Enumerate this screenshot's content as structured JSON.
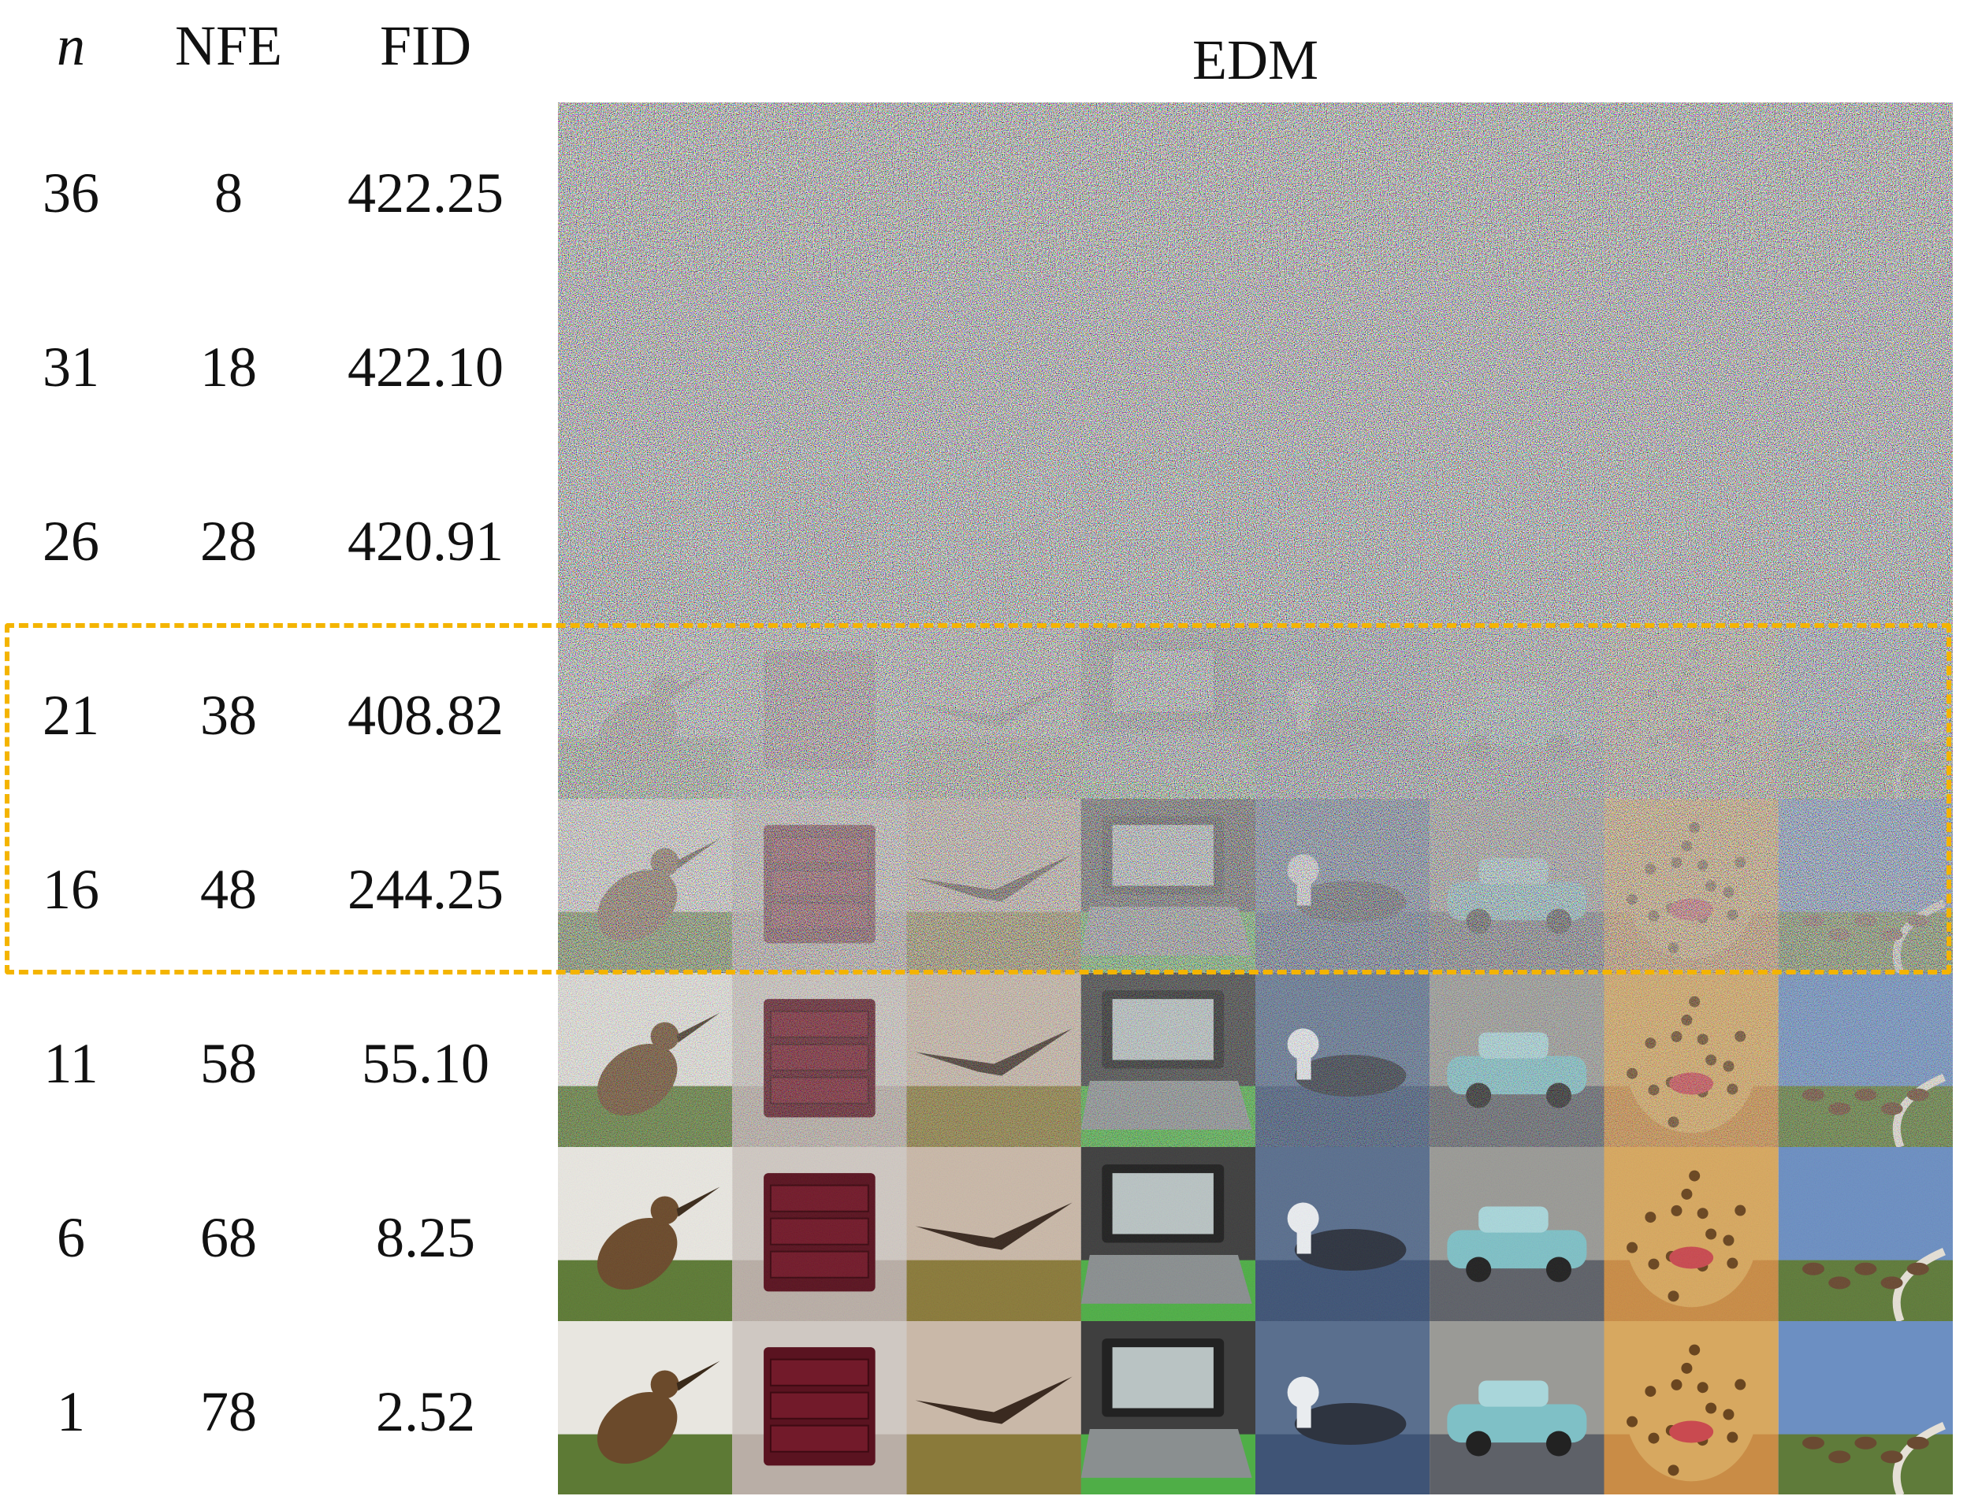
{
  "header": {
    "n": "n",
    "nfe": "NFE",
    "fid": "FID",
    "edm": "EDM"
  },
  "rows": [
    {
      "n": "36",
      "nfe": "8",
      "fid": "422.25",
      "noise": 1.0
    },
    {
      "n": "31",
      "nfe": "18",
      "fid": "422.10",
      "noise": 1.0
    },
    {
      "n": "26",
      "nfe": "28",
      "fid": "420.91",
      "noise": 0.99
    },
    {
      "n": "21",
      "nfe": "38",
      "fid": "408.82",
      "noise": 0.93
    },
    {
      "n": "16",
      "nfe": "48",
      "fid": "244.25",
      "noise": 0.68
    },
    {
      "n": "11",
      "nfe": "58",
      "fid": "55.10",
      "noise": 0.32
    },
    {
      "n": "6",
      "nfe": "68",
      "fid": "8.25",
      "noise": 0.04
    },
    {
      "n": "1",
      "nfe": "78",
      "fid": "2.52",
      "noise": 0.0
    }
  ],
  "samples": [
    {
      "subject": "bird",
      "bg": "#e8e6e0",
      "fg": "#6b4a2b",
      "ground": "#5d7a35"
    },
    {
      "subject": "dresser",
      "bg": "#cfc8c2",
      "fg": "#5a1320",
      "ground": "#b9aea6"
    },
    {
      "subject": "eagle",
      "bg": "#c9b8a8",
      "fg": "#3a2a20",
      "ground": "#8a7a3a"
    },
    {
      "subject": "laptop",
      "bg": "#3f3f3f",
      "fg": "#b9c3c3",
      "ground": "#4fae47"
    },
    {
      "subject": "seabird",
      "bg": "#5a6f8e",
      "fg": "#2e3440",
      "ground": "#3f5476"
    },
    {
      "subject": "car",
      "bg": "#9a9a96",
      "fg": "#7fc0c6",
      "ground": "#5e6168"
    },
    {
      "subject": "leopard",
      "bg": "#d7a860",
      "fg": "#6a4620",
      "ground": "#c98c46"
    },
    {
      "subject": "field",
      "bg": "#6c8fc2",
      "fg": "#6a4a32",
      "ground": "#5f7b3a"
    }
  ],
  "highlight_rows": [
    3,
    4
  ]
}
